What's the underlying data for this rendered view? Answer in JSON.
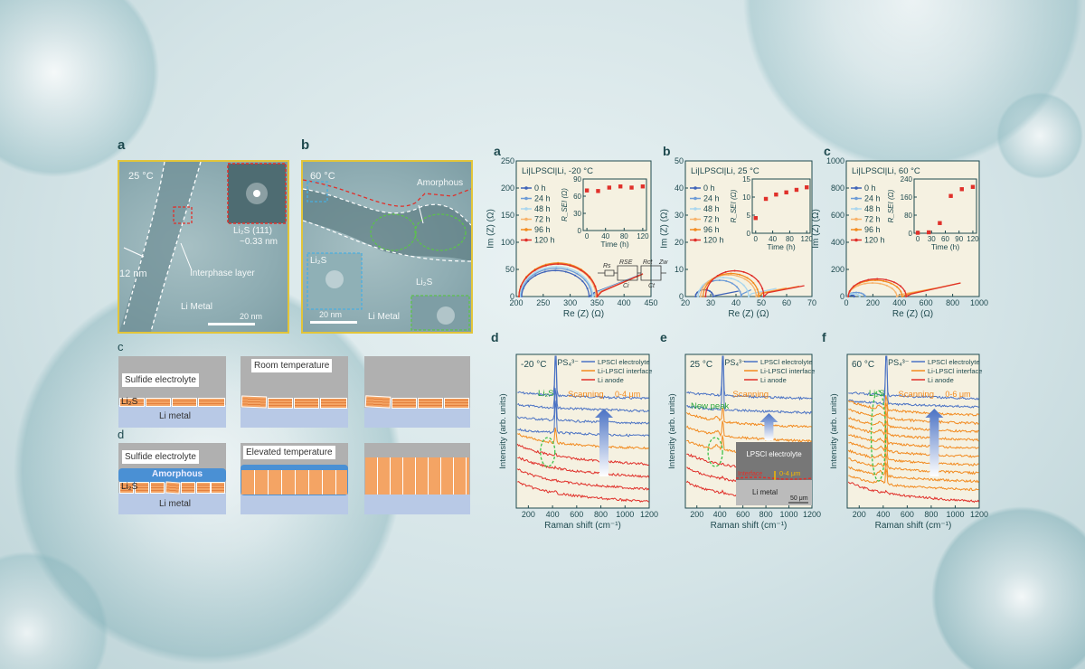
{
  "tem": {
    "a": {
      "panel": "a",
      "temp": "25 °C",
      "fft_label": "Li₂S (111)",
      "spacing": "~0.33 nm",
      "thickness": "12 nm",
      "interphase": "Interphase  layer",
      "metal": "Li Metal",
      "scale": "20 nm"
    },
    "b": {
      "panel": "b",
      "temp": "60 °C",
      "amorphous": "Amorphous",
      "li2s_1": "Li₂S",
      "li2s_2": "Li₂S",
      "metal": "Li Metal",
      "scale": "20 nm"
    }
  },
  "schematic": {
    "c": {
      "panel": "c",
      "electrolyte": "Sulfide electrolyte",
      "condition": "Room temperature",
      "li2s": "Li₂S",
      "metal": "Li metal"
    },
    "d": {
      "panel": "d",
      "electrolyte": "Sulfide electrolyte",
      "condition": "Elevated temperature",
      "amorphous": "Amorphous",
      "li2s": "Li₂S",
      "metal": "Li metal"
    }
  },
  "colors": {
    "0 h": "#3f63b8",
    "24 h": "#6d9bd6",
    "48 h": "#a9d6ee",
    "72 h": "#f7b46e",
    "96 h": "#f28a1e",
    "120 h": "#e0302a",
    "electrolyte": "#4a72c4",
    "interface": "#f28a1e",
    "anode": "#e0302a",
    "li2s_ellipse": "#3cc24a",
    "panel_bg": "#f5f1e1"
  },
  "chart_data": [
    {
      "type": "line",
      "panel": "a",
      "title": "Li|LPSCl|Li, -20 °C",
      "xlabel": "Re (Z) (Ω)",
      "ylabel": "Im (Z) (Ω)",
      "xlim": [
        200,
        450
      ],
      "ylim": [
        0,
        250
      ],
      "xticks": [
        200,
        250,
        300,
        350,
        400,
        450
      ],
      "yticks": [
        0,
        50,
        100,
        150,
        200,
        250
      ],
      "legend": [
        "0 h",
        "24 h",
        "48 h",
        "72 h",
        "96 h",
        "120 h"
      ],
      "arcs": [
        [
          210,
          335,
          48,
          430,
          40
        ],
        [
          208,
          340,
          52,
          430,
          40
        ],
        [
          207,
          342,
          55,
          432,
          40
        ],
        [
          205,
          348,
          60,
          434,
          41
        ],
        [
          205,
          350,
          62,
          434,
          41
        ],
        [
          205,
          350,
          60,
          435,
          42
        ]
      ],
      "circuit": [
        "Rs",
        "RSE",
        "Ci",
        "Rct",
        "Zw",
        "Ct"
      ],
      "inset": {
        "xlabel": "Time (h)",
        "ylabel": "R_SEI (Ω)",
        "xlim": [
          0,
          120
        ],
        "ylim": [
          0,
          90
        ],
        "xticks": [
          0,
          40,
          80,
          120
        ],
        "yticks": [
          0,
          30,
          60,
          90
        ],
        "x": [
          0,
          24,
          48,
          72,
          96,
          120
        ],
        "y": [
          70,
          69,
          75,
          77,
          75,
          77
        ]
      }
    },
    {
      "type": "line",
      "panel": "b",
      "title": "Li|LPSCl|Li, 25 °C",
      "xlabel": "Re (Z) (Ω)",
      "ylabel": "Im (Z) (Ω)",
      "xlim": [
        20,
        70
      ],
      "ylim": [
        0,
        50
      ],
      "xticks": [
        20,
        30,
        40,
        50,
        60,
        70
      ],
      "yticks": [
        0,
        10,
        20,
        30,
        40,
        50
      ],
      "legend": [
        "0 h",
        "24 h",
        "48 h",
        "72 h",
        "96 h",
        "120 h"
      ],
      "arcs": [
        [
          24,
          31,
          2.5,
          41,
          2
        ],
        [
          25,
          42,
          6,
          46,
          2.5
        ],
        [
          25,
          45,
          7,
          56,
          3
        ],
        [
          26,
          48,
          8,
          60,
          3.2
        ],
        [
          27,
          49,
          8.5,
          65,
          3.8
        ],
        [
          28,
          51,
          9.5,
          67,
          4
        ]
      ],
      "inset": {
        "xlabel": "Time (h)",
        "ylabel": "R_SEI (Ω)",
        "xlim": [
          0,
          120
        ],
        "ylim": [
          0,
          15
        ],
        "xticks": [
          0,
          40,
          80,
          120
        ],
        "yticks": [
          0,
          5,
          10,
          15
        ],
        "x": [
          0,
          24,
          48,
          72,
          96,
          120
        ],
        "y": [
          4.2,
          9.5,
          10.7,
          11.3,
          12,
          12.7
        ]
      }
    },
    {
      "type": "line",
      "panel": "c",
      "title": "Li|LPSCl|Li, 60 °C",
      "xlabel": "Re (Z) (Ω)",
      "ylabel": "Im (Z) (Ω)",
      "xlim": [
        0,
        1000
      ],
      "ylim": [
        0,
        1000
      ],
      "xticks": [
        0,
        200,
        400,
        600,
        800,
        1000
      ],
      "yticks": [
        0,
        200,
        400,
        600,
        800,
        1000
      ],
      "legend": [
        "0 h",
        "24 h",
        "48 h",
        "72 h",
        "96 h",
        "120 h"
      ],
      "arcs": [
        [
          10,
          60,
          10,
          70,
          5
        ],
        [
          10,
          140,
          30,
          150,
          5
        ],
        [
          10,
          100,
          20,
          110,
          8
        ],
        [
          15,
          380,
          100,
          660,
          60
        ],
        [
          15,
          420,
          120,
          860,
          100
        ],
        [
          15,
          450,
          130,
          860,
          100
        ]
      ],
      "inset": {
        "xlabel": "Time (h)",
        "ylabel": "R_SEI (Ω)",
        "xlim": [
          0,
          120
        ],
        "ylim": [
          0,
          240
        ],
        "xticks": [
          0,
          30,
          60,
          90,
          120
        ],
        "yticks": [
          0,
          80,
          160,
          240
        ],
        "x": [
          0,
          24,
          48,
          72,
          96,
          120
        ],
        "y": [
          2,
          4,
          45,
          165,
          195,
          205
        ]
      }
    },
    {
      "type": "line",
      "panel": "d",
      "temp": "-20 °C",
      "peak": "PS₄³⁻",
      "xlabel": "Raman shift (cm⁻¹)",
      "ylabel": "Intensity (arb. units)",
      "xlim": [
        100,
        1200
      ],
      "xticks": [
        200,
        400,
        600,
        800,
        1000,
        1200
      ],
      "legend": [
        "LPSCl electrolyte",
        "Li-LPSCl interface",
        "Li anode"
      ],
      "annotation": "Li₂S",
      "scanning": "Scanning",
      "depth": "0-4 μm",
      "traces": [
        "electrolyte",
        "electrolyte",
        "electrolyte",
        "electrolyte",
        "interface",
        "anode",
        "anode",
        "anode",
        "anode"
      ]
    },
    {
      "type": "line",
      "panel": "e",
      "temp": "25 °C",
      "peak": "PS₄³⁻",
      "xlabel": "Raman shift (cm⁻¹)",
      "ylabel": "Intensity (arb. units)",
      "xlim": [
        100,
        1200
      ],
      "xticks": [
        200,
        400,
        600,
        800,
        1000,
        1200
      ],
      "legend": [
        "LPSCl electrolyte",
        "Li-LPSCl interface",
        "Li anode"
      ],
      "annotation": "New peak",
      "scanning": "Scanning",
      "traces": [
        "electrolyte",
        "electrolyte",
        "interface",
        "interface",
        "interface",
        "anode",
        "anode",
        "anode"
      ],
      "inset_image": {
        "electrolyte": "LPSCl electrolyte",
        "interface": "Interface",
        "depth": "0-4 μm",
        "metal": "Li metal",
        "scale": "50 μm"
      }
    },
    {
      "type": "line",
      "panel": "f",
      "temp": "60 °C",
      "peak": "PS₄³⁻",
      "xlabel": "Raman shift (cm⁻¹)",
      "ylabel": "Intensity (arb. units)",
      "xlim": [
        100,
        1200
      ],
      "xticks": [
        200,
        400,
        600,
        800,
        1000,
        1200
      ],
      "legend": [
        "LPSCl electrolyte",
        "Li-LPSCl interface",
        "Li anode"
      ],
      "annotation": "Li₂S",
      "scanning": "Scanning",
      "depth": "0-6 μm",
      "traces": [
        "electrolyte",
        "electrolyte",
        "interface",
        "interface",
        "interface",
        "interface",
        "interface",
        "interface",
        "interface",
        "interface",
        "interface",
        "interface",
        "anode"
      ]
    }
  ]
}
